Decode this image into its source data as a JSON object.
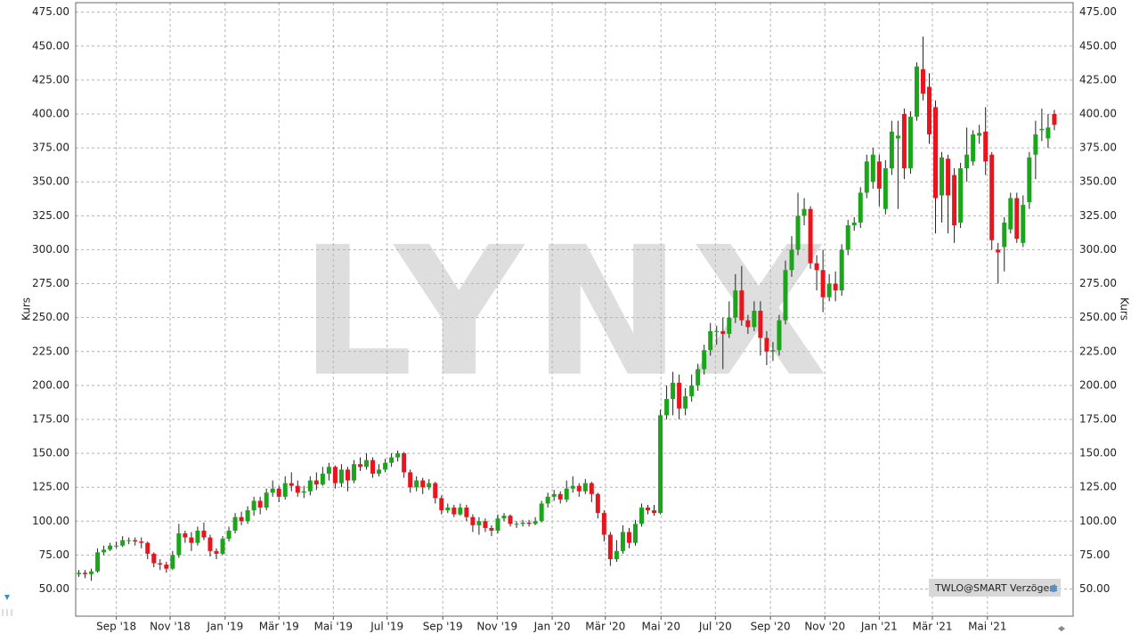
{
  "chart_data": {
    "type": "candlestick",
    "y_label": "Kurs",
    "watermark": "LYNX",
    "badge": "TWLO@SMART Verzögert",
    "up_color": "#1aa51a",
    "down_color": "#e8141e",
    "grid": true,
    "xlim": [
      -0.5,
      159
    ],
    "xticks": [
      {
        "value": 6,
        "label": "Sep '18"
      },
      {
        "value": 14.6,
        "label": "Nov '18"
      },
      {
        "value": 23.4,
        "label": "Jan '19"
      },
      {
        "value": 32,
        "label": "Mär '19"
      },
      {
        "value": 40.7,
        "label": "Mai '19"
      },
      {
        "value": 49.3,
        "label": "Jul '19"
      },
      {
        "value": 58.2,
        "label": "Sep '19"
      },
      {
        "value": 66.9,
        "label": "Nov '19"
      },
      {
        "value": 75.7,
        "label": "Jan '20"
      },
      {
        "value": 84.2,
        "label": "Mär '20"
      },
      {
        "value": 93.1,
        "label": "Mai '20"
      },
      {
        "value": 101.8,
        "label": "Jul '20"
      },
      {
        "value": 110.6,
        "label": "Sep '20"
      },
      {
        "value": 119.3,
        "label": "Nov '20"
      },
      {
        "value": 128,
        "label": "Jan '21"
      },
      {
        "value": 136.5,
        "label": "Mär '21"
      },
      {
        "value": 145.3,
        "label": "Mai '21"
      }
    ],
    "ylim": [
      30,
      482
    ],
    "yticks": [
      {
        "value": 50,
        "label": "50.00"
      },
      {
        "value": 75,
        "label": "75.00"
      },
      {
        "value": 100,
        "label": "100.00"
      },
      {
        "value": 125,
        "label": "125.00"
      },
      {
        "value": 150,
        "label": "150.00"
      },
      {
        "value": 175,
        "label": "175.00"
      },
      {
        "value": 200,
        "label": "200.00"
      },
      {
        "value": 225,
        "label": "225.00"
      },
      {
        "value": 250,
        "label": "250.00"
      },
      {
        "value": 275,
        "label": "275.00"
      },
      {
        "value": 300,
        "label": "300.00"
      },
      {
        "value": 325,
        "label": "325.00"
      },
      {
        "value": 350,
        "label": "350.00"
      },
      {
        "value": 375,
        "label": "375.00"
      },
      {
        "value": 400,
        "label": "400.00"
      },
      {
        "value": 425,
        "label": "425.00"
      },
      {
        "value": 450,
        "label": "450.00"
      },
      {
        "value": 475,
        "label": "475.00"
      }
    ],
    "open": [
      61,
      62,
      61,
      63,
      77,
      79,
      82,
      82,
      86,
      86,
      85,
      84,
      76,
      69,
      68,
      65,
      75,
      91,
      88,
      84,
      93,
      88,
      78,
      76,
      87,
      93,
      103,
      100,
      108,
      115,
      110,
      121,
      124,
      118,
      128,
      126,
      121,
      122,
      130,
      127,
      135,
      140,
      128,
      138,
      130,
      142,
      140,
      145,
      135,
      138,
      143,
      147,
      150,
      136,
      125,
      130,
      125,
      128,
      117,
      108,
      110,
      105,
      110,
      103,
      97,
      100,
      95,
      93,
      102,
      104,
      98,
      98,
      99,
      98,
      100,
      113,
      118,
      120,
      116,
      124,
      126,
      122,
      128,
      120,
      106,
      90,
      72,
      78,
      92,
      84,
      98,
      110,
      108,
      106,
      178,
      190,
      202,
      183,
      192,
      200,
      212,
      226,
      240,
      240,
      238,
      250,
      270,
      248,
      243,
      255,
      235,
      225,
      226,
      248,
      285,
      300,
      325,
      330,
      290,
      285,
      265,
      275,
      270,
      300,
      318,
      320,
      342,
      350,
      365,
      330,
      360,
      382,
      400,
      360,
      398,
      433,
      420,
      405,
      340,
      367,
      355,
      320,
      360,
      365,
      384,
      387,
      370,
      300,
      302,
      315,
      338,
      305,
      335,
      370,
      388,
      382,
      400
    ],
    "high": [
      64,
      64,
      65,
      80,
      82,
      84,
      85,
      89,
      88,
      88,
      88,
      85,
      77,
      72,
      70,
      78,
      98,
      93,
      92,
      96,
      99,
      90,
      80,
      89,
      96,
      106,
      107,
      111,
      118,
      118,
      124,
      130,
      126,
      133,
      136,
      130,
      126,
      133,
      136,
      140,
      143,
      141,
      142,
      140,
      145,
      147,
      150,
      147,
      142,
      146,
      150,
      152,
      151,
      138,
      133,
      132,
      131,
      129,
      119,
      113,
      112,
      113,
      112,
      105,
      103,
      102,
      97,
      105,
      106,
      105,
      100,
      101,
      101,
      103,
      115,
      121,
      123,
      122,
      130,
      133,
      128,
      131,
      129,
      121,
      108,
      92,
      86,
      97,
      95,
      101,
      113,
      112,
      112,
      182,
      200,
      210,
      208,
      198,
      208,
      216,
      230,
      246,
      244,
      250,
      262,
      282,
      288,
      252,
      262,
      262,
      240,
      232,
      252,
      292,
      310,
      342,
      338,
      332,
      296,
      300,
      282,
      284,
      304,
      322,
      324,
      346,
      370,
      375,
      370,
      366,
      395,
      395,
      404,
      402,
      438,
      457,
      430,
      410,
      372,
      370,
      360,
      364,
      390,
      388,
      392,
      405,
      372,
      305,
      324,
      342,
      342,
      340,
      372,
      395,
      404,
      400,
      403
    ],
    "low": [
      59,
      58,
      56,
      62,
      75,
      78,
      80,
      81,
      83,
      82,
      80,
      72,
      66,
      64,
      62,
      64,
      73,
      84,
      78,
      82,
      86,
      74,
      72,
      75,
      85,
      91,
      97,
      98,
      104,
      105,
      108,
      118,
      114,
      116,
      122,
      118,
      117,
      119,
      123,
      126,
      130,
      124,
      125,
      122,
      128,
      137,
      138,
      132,
      133,
      136,
      140,
      144,
      132,
      121,
      122,
      120,
      123,
      113,
      105,
      106,
      103,
      104,
      100,
      92,
      90,
      92,
      89,
      91,
      100,
      96,
      95,
      96,
      96,
      97,
      99,
      110,
      115,
      113,
      114,
      121,
      118,
      120,
      114,
      102,
      85,
      67,
      70,
      76,
      80,
      82,
      96,
      105,
      104,
      105,
      175,
      178,
      175,
      178,
      188,
      196,
      208,
      222,
      230,
      212,
      235,
      246,
      244,
      238,
      240,
      222,
      215,
      218,
      222,
      245,
      280,
      296,
      318,
      286,
      270,
      254,
      262,
      262,
      266,
      296,
      314,
      316,
      338,
      345,
      332,
      326,
      355,
      330,
      352,
      356,
      395,
      410,
      378,
      312,
      320,
      312,
      305,
      316,
      350,
      362,
      378,
      355,
      300,
      275,
      284,
      312,
      305,
      302,
      330,
      352,
      380,
      375,
      388
    ],
    "close": [
      62,
      61,
      63,
      77,
      79,
      82,
      82,
      86,
      86,
      85,
      84,
      76,
      69,
      68,
      65,
      75,
      91,
      88,
      84,
      93,
      88,
      78,
      76,
      87,
      93,
      103,
      100,
      108,
      115,
      110,
      121,
      124,
      118,
      128,
      126,
      121,
      122,
      130,
      127,
      135,
      140,
      128,
      138,
      130,
      142,
      140,
      145,
      135,
      138,
      143,
      147,
      150,
      136,
      125,
      130,
      125,
      128,
      117,
      108,
      110,
      105,
      110,
      103,
      97,
      100,
      95,
      93,
      102,
      104,
      98,
      98,
      99,
      98,
      100,
      113,
      118,
      120,
      116,
      124,
      126,
      122,
      128,
      120,
      106,
      90,
      72,
      78,
      92,
      84,
      98,
      110,
      108,
      106,
      178,
      190,
      202,
      183,
      192,
      200,
      212,
      226,
      240,
      240,
      238,
      250,
      270,
      248,
      243,
      255,
      235,
      225,
      226,
      248,
      285,
      300,
      325,
      330,
      290,
      285,
      265,
      275,
      270,
      300,
      318,
      320,
      342,
      365,
      370,
      345,
      360,
      387,
      384,
      360,
      398,
      435,
      415,
      385,
      338,
      368,
      340,
      318,
      360,
      370,
      385,
      386,
      365,
      307,
      298,
      320,
      338,
      308,
      333,
      368,
      385,
      389,
      390,
      392
    ]
  }
}
